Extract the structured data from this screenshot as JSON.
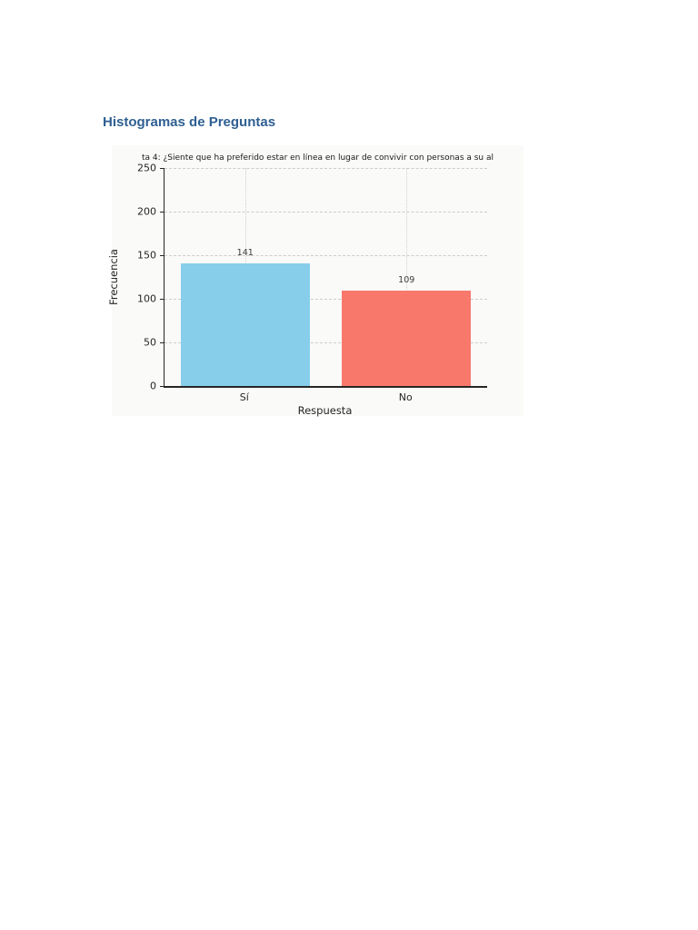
{
  "page": {
    "heading": "Histogramas de Preguntas"
  },
  "chart_data": {
    "type": "bar",
    "title": "ta 4: ¿Siente que ha preferido estar en línea en lugar de convivir con personas a su al",
    "xlabel": "Respuesta",
    "ylabel": "Frecuencia",
    "categories": [
      "Sí",
      "No"
    ],
    "values": [
      141,
      109
    ],
    "value_labels": [
      "141",
      "109"
    ],
    "bar_colors": [
      "#87ceeb",
      "#f8786c"
    ],
    "ylim": [
      0,
      250
    ],
    "yticks": [
      0,
      50,
      100,
      150,
      200,
      250
    ],
    "grid": true,
    "legend": "none"
  }
}
